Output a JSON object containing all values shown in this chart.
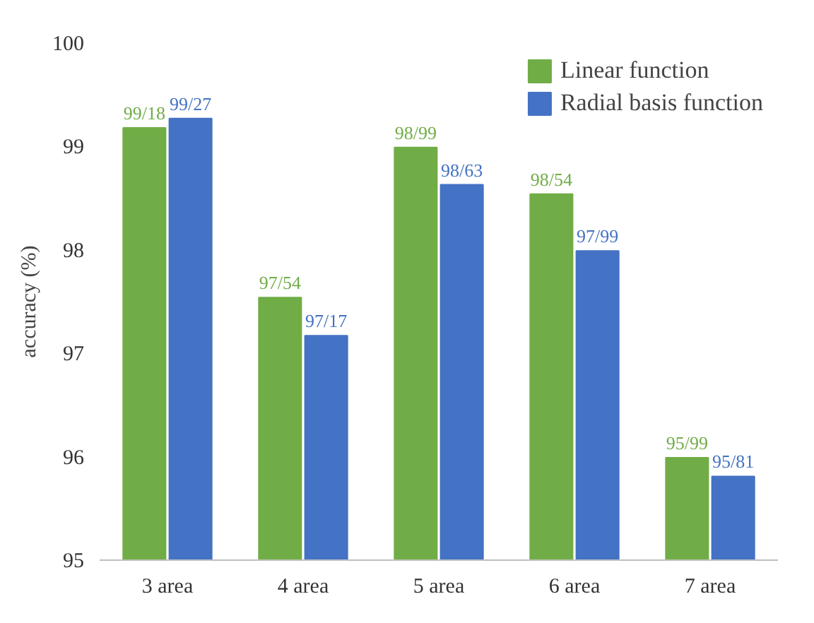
{
  "chart_data": {
    "type": "bar",
    "ylabel": "accuracy (%)",
    "categories": [
      "3 area",
      "4 area",
      "5 area",
      "6 area",
      "7 area"
    ],
    "series": [
      {
        "name": "Linear function",
        "color": "#70ad47",
        "values": [
          99.18,
          97.54,
          98.99,
          98.54,
          95.99
        ],
        "value_labels": [
          "99/18",
          "97/54",
          "98/99",
          "98/54",
          "95/99"
        ]
      },
      {
        "name": "Radial basis function",
        "color": "#4472c4",
        "values": [
          99.27,
          97.17,
          98.63,
          97.99,
          95.81
        ],
        "value_labels": [
          "99/27",
          "97/17",
          "98/63",
          "97/99",
          "95/81"
        ]
      }
    ],
    "ylim": [
      95,
      100
    ],
    "yticks": [
      95,
      96,
      97,
      98,
      99,
      100
    ],
    "grid": false,
    "legend": "top right"
  }
}
